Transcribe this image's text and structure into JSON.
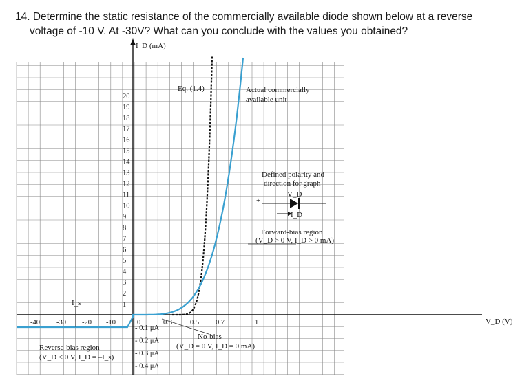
{
  "question": {
    "line1": "14. Determine the static resistance of the commercially available diode shown below at a reverse",
    "line2": "voltage of -10 V. At -30V? What can you conclude with the values you obtained?"
  },
  "chart_data": {
    "type": "line",
    "ylabel": "I_D (mA)",
    "xlabel": "V_D (V)",
    "y_ticks": [
      "1",
      "2",
      "3",
      "4",
      "5",
      "6",
      "7",
      "8",
      "9",
      "10",
      "11",
      "12",
      "13",
      "14",
      "15",
      "16",
      "17",
      "18",
      "19",
      "20"
    ],
    "x_ticks_negative": [
      "-40",
      "-30",
      "-20",
      "-10"
    ],
    "x_ticks_positive": [
      "0",
      "0.3",
      "0.5",
      "0.7",
      "1"
    ],
    "neg_y_ticks": [
      "- 0.1 μA",
      "- 0.2 μA",
      "- 0.3 μA",
      "- 0.4 μA"
    ],
    "series": [
      {
        "name": "Eq. (1.4)",
        "style": "dashed",
        "color": "#111111"
      },
      {
        "name": "Actual commercially available unit",
        "style": "solid",
        "color": "#3aa0d0"
      }
    ],
    "annotations": {
      "eq": "Eq. (1.4)",
      "actual_line1": "Actual commercially",
      "actual_line2": "available unit",
      "polarity_line1": "Defined polarity and",
      "polarity_line2": "direction for graph",
      "vd": "V_D",
      "id": "I_D",
      "plus": "+",
      "minus": "–",
      "forward_line1": "Forward-bias region",
      "forward_line2": "(V_D > 0 V, I_D > 0 mA)",
      "nobias_line1": "No-bias",
      "nobias_line2": "(V_D = 0 V, I_D = 0 mA)",
      "reverse_line1": "Reverse-bias region",
      "reverse_line2": "(V_D < 0 V, I_D = –I_s)",
      "is": "I_s"
    }
  }
}
